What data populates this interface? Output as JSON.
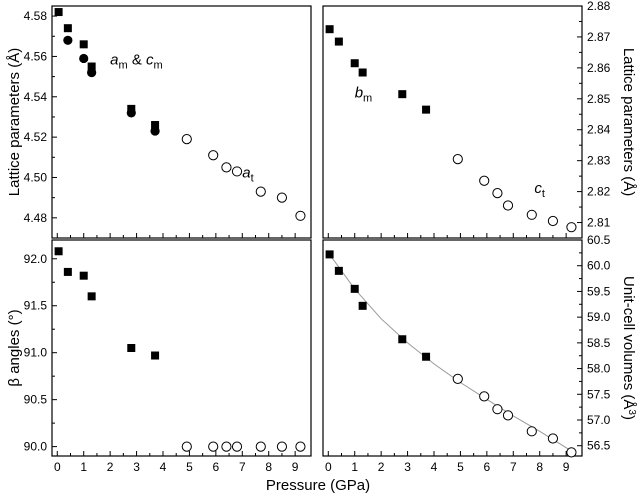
{
  "xlabel": "Pressure (GPa)",
  "chart_data": [
    {
      "type": "scatter",
      "panel": "top-left",
      "ylabel": "Lattice parameters (Å)",
      "xlim": [
        -0.2,
        9.6
      ],
      "ylim": [
        4.47,
        4.585
      ],
      "xticks": [
        "0",
        "1",
        "2",
        "3",
        "4",
        "5",
        "6",
        "7",
        "8",
        "9"
      ],
      "yticks": [
        "4.48",
        "4.50",
        "4.52",
        "4.54",
        "4.56",
        "4.58"
      ],
      "series": [
        {
          "marker": "square-filled",
          "x": [
            0.05,
            0.4,
            1.0,
            1.3,
            2.8,
            3.7
          ],
          "y": [
            4.582,
            4.574,
            4.566,
            4.555,
            4.534,
            4.526
          ]
        },
        {
          "marker": "circle-filled",
          "x": [
            0.4,
            1.0,
            1.3,
            2.8,
            3.7
          ],
          "y": [
            4.568,
            4.559,
            4.552,
            4.532,
            4.523
          ]
        },
        {
          "marker": "circle-open",
          "x": [
            4.9,
            5.9,
            6.4,
            6.8,
            7.7,
            8.5,
            9.2
          ],
          "y": [
            4.519,
            4.511,
            4.505,
            4.503,
            4.493,
            4.49,
            4.481
          ]
        }
      ],
      "annotations": [
        {
          "parts": [
            [
              "a",
              "m"
            ],
            [
              " & ",
              ""
            ],
            [
              "c",
              "m"
            ]
          ],
          "x": 2.0,
          "y": 4.556
        },
        {
          "parts": [
            [
              "a",
              "t"
            ]
          ],
          "x": 7.0,
          "y": 4.5
        }
      ]
    },
    {
      "type": "scatter",
      "panel": "top-right",
      "ylabel": "Lattice parameters (Å)",
      "xlim": [
        -0.2,
        9.6
      ],
      "ylim": [
        2.805,
        2.88
      ],
      "xticks": [
        "0",
        "1",
        "2",
        "3",
        "4",
        "5",
        "6",
        "7",
        "8",
        "9"
      ],
      "yticks": [
        "2.81",
        "2.82",
        "2.83",
        "2.84",
        "2.85",
        "2.86",
        "2.87",
        "2.88"
      ],
      "series": [
        {
          "marker": "square-filled",
          "x": [
            0.05,
            0.4,
            1.0,
            1.3,
            2.8,
            3.7
          ],
          "y": [
            2.8725,
            2.8685,
            2.8615,
            2.8585,
            2.8515,
            2.8465
          ]
        },
        {
          "marker": "circle-open",
          "x": [
            4.9,
            5.9,
            6.4,
            6.8,
            7.7,
            8.5,
            9.2
          ],
          "y": [
            2.8305,
            2.8235,
            2.8195,
            2.8155,
            2.8125,
            2.8105,
            2.8085
          ]
        }
      ],
      "annotations": [
        {
          "parts": [
            [
              "b",
              "m"
            ]
          ],
          "x": 1.0,
          "y": 2.8505
        },
        {
          "parts": [
            [
              "c",
              "t"
            ]
          ],
          "x": 7.8,
          "y": 2.8195
        }
      ]
    },
    {
      "type": "scatter",
      "panel": "bottom-left",
      "ylabel": "β angles (°)",
      "xlim": [
        -0.2,
        9.6
      ],
      "ylim": [
        89.9,
        92.2
      ],
      "xticks": [
        "0",
        "1",
        "2",
        "3",
        "4",
        "5",
        "6",
        "7",
        "8",
        "9"
      ],
      "yticks": [
        "90.0",
        "90.5",
        "91.0",
        "91.5",
        "92.0"
      ],
      "series": [
        {
          "marker": "square-filled",
          "x": [
            0.05,
            0.4,
            1.0,
            1.3,
            2.8,
            3.7
          ],
          "y": [
            92.08,
            91.86,
            91.82,
            91.6,
            91.05,
            90.97
          ]
        },
        {
          "marker": "circle-open",
          "x": [
            4.9,
            5.9,
            6.4,
            6.8,
            7.7,
            8.5,
            9.2
          ],
          "y": [
            90.0,
            90.0,
            90.0,
            90.0,
            90.0,
            90.0,
            90.0
          ]
        }
      ],
      "annotations": []
    },
    {
      "type": "scatter",
      "panel": "bottom-right",
      "ylabel": "Unit-cell volumes (Å3)",
      "xlim": [
        -0.2,
        9.6
      ],
      "ylim": [
        56.3,
        60.5
      ],
      "xticks": [
        "0",
        "1",
        "2",
        "3",
        "4",
        "5",
        "6",
        "7",
        "8",
        "9"
      ],
      "yticks": [
        "56.5",
        "57.0",
        "57.5",
        "58.0",
        "58.5",
        "59.0",
        "59.5",
        "60.0",
        "60.5"
      ],
      "series": [
        {
          "marker": "square-filled",
          "x": [
            0.05,
            0.4,
            1.0,
            1.3,
            2.8,
            3.7
          ],
          "y": [
            60.22,
            59.9,
            59.55,
            59.22,
            58.57,
            58.23
          ]
        },
        {
          "marker": "circle-open",
          "x": [
            4.9,
            5.9,
            6.4,
            6.8,
            7.7,
            8.5,
            9.2
          ],
          "y": [
            57.8,
            57.46,
            57.21,
            57.09,
            56.78,
            56.64,
            56.37
          ]
        }
      ],
      "fit_line": {
        "x": [
          0.05,
          1,
          2,
          3,
          4,
          5,
          6,
          7,
          8,
          9.2
        ],
        "y": [
          60.22,
          59.55,
          58.97,
          58.5,
          58.09,
          57.73,
          57.4,
          57.08,
          56.78,
          56.4
        ]
      },
      "annotations": []
    }
  ]
}
